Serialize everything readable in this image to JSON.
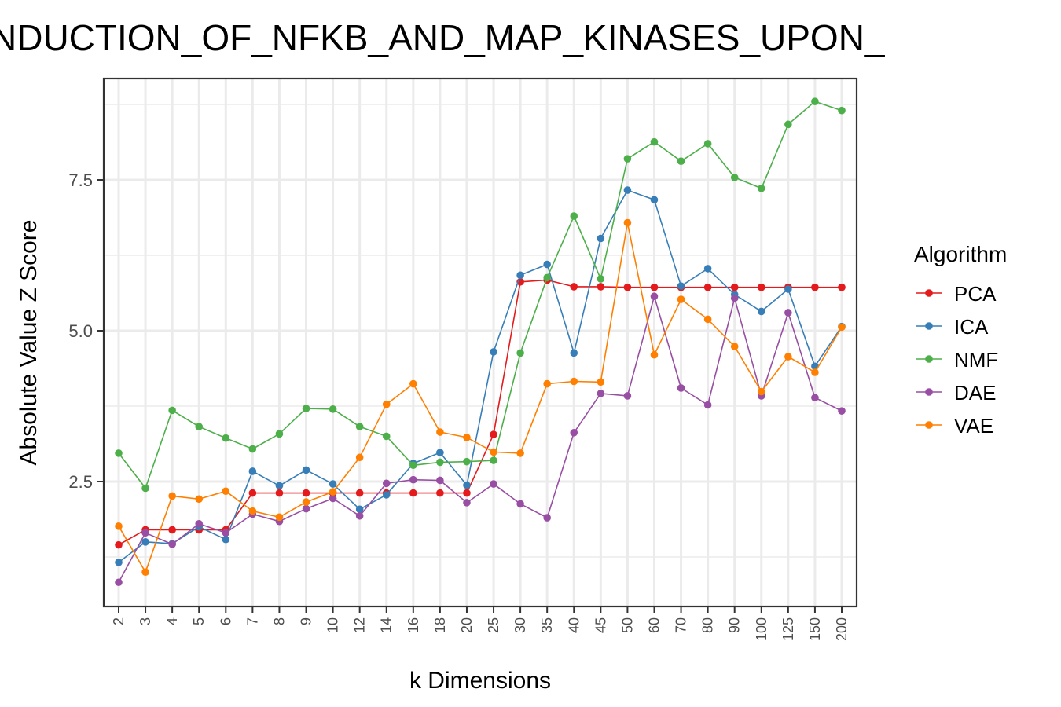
{
  "chart_data": {
    "type": "line",
    "title": "NDUCTION_OF_NFKB_AND_MAP_KINASES_UPON_",
    "xlabel": "k Dimensions",
    "ylabel": "Absolute Value Z Score",
    "x_is_categorical": true,
    "categories": [
      "2",
      "3",
      "4",
      "5",
      "6",
      "7",
      "8",
      "9",
      "10",
      "12",
      "14",
      "16",
      "18",
      "20",
      "25",
      "30",
      "35",
      "40",
      "45",
      "50",
      "60",
      "70",
      "80",
      "90",
      "100",
      "125",
      "150",
      "200"
    ],
    "y_ticks": [
      2.5,
      5.0,
      7.5
    ],
    "y_tick_labels": [
      "2.5",
      "5.0",
      "7.5"
    ],
    "ylim": [
      0.5,
      9.2
    ],
    "grid": true,
    "legend": {
      "title": "Algorithm",
      "position": "right"
    },
    "series": [
      {
        "name": "PCA",
        "color": "#E41A1C",
        "values": [
          1.45,
          1.7,
          1.7,
          1.7,
          1.7,
          2.31,
          2.31,
          2.31,
          2.31,
          2.31,
          2.31,
          2.31,
          2.31,
          2.31,
          3.28,
          5.81,
          5.84,
          5.73,
          5.73,
          5.72,
          5.72,
          5.72,
          5.72,
          5.72,
          5.72,
          5.72,
          5.72,
          5.72
        ]
      },
      {
        "name": "ICA",
        "color": "#377EB8",
        "values": [
          1.16,
          1.5,
          1.47,
          1.75,
          1.54,
          2.67,
          2.43,
          2.69,
          2.46,
          2.04,
          2.28,
          2.8,
          2.98,
          2.44,
          4.65,
          5.92,
          6.1,
          4.63,
          6.53,
          7.33,
          7.17,
          5.74,
          6.03,
          5.6,
          5.32,
          5.69,
          4.41,
          5.07
        ]
      },
      {
        "name": "NMF",
        "color": "#4DAF4A",
        "values": [
          2.97,
          2.39,
          3.68,
          3.41,
          3.22,
          3.04,
          3.29,
          3.71,
          3.7,
          3.41,
          3.25,
          2.77,
          2.82,
          2.83,
          2.85,
          4.63,
          5.88,
          6.9,
          5.86,
          7.85,
          8.13,
          7.81,
          8.1,
          7.54,
          7.36,
          8.42,
          8.8,
          8.65
        ]
      },
      {
        "name": "DAE",
        "color": "#984EA3",
        "values": [
          0.83,
          1.65,
          1.46,
          1.8,
          1.65,
          1.96,
          1.84,
          2.05,
          2.22,
          1.93,
          2.47,
          2.53,
          2.52,
          2.15,
          2.46,
          2.13,
          1.9,
          3.31,
          3.96,
          3.92,
          5.57,
          4.05,
          3.77,
          5.54,
          3.92,
          5.3,
          3.89,
          3.67
        ]
      },
      {
        "name": "VAE",
        "color": "#FF7F00",
        "values": [
          1.76,
          1.0,
          2.26,
          2.21,
          2.34,
          2.01,
          1.91,
          2.16,
          2.33,
          2.9,
          3.78,
          4.12,
          3.32,
          3.23,
          2.99,
          2.97,
          4.12,
          4.16,
          4.15,
          6.79,
          4.6,
          5.52,
          5.19,
          4.74,
          3.99,
          4.57,
          4.31,
          5.06
        ]
      }
    ]
  }
}
